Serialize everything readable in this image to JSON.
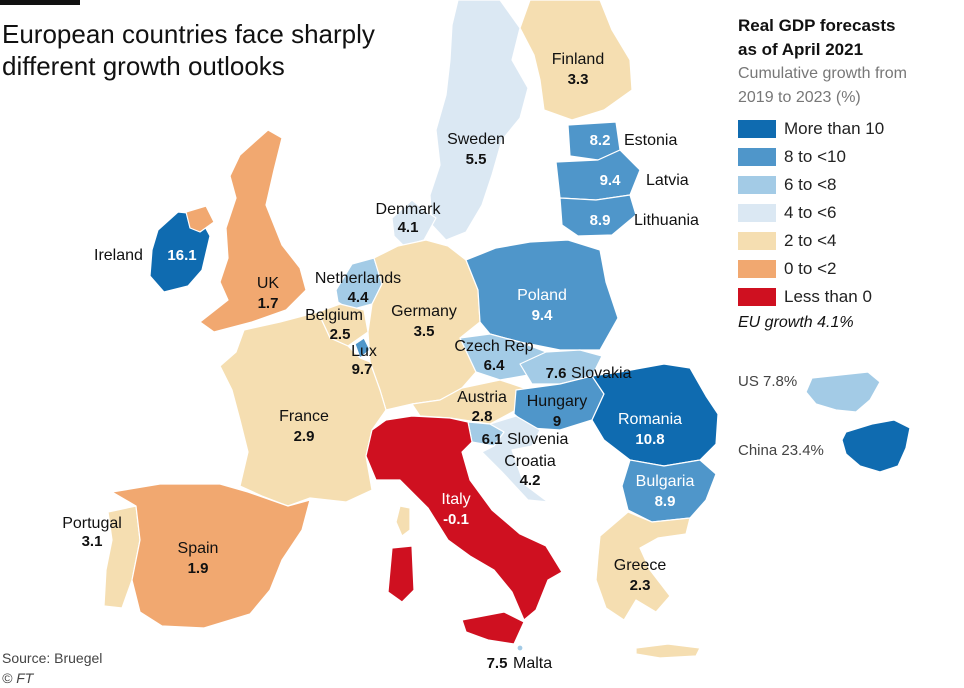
{
  "title": "European countries face sharply different growth outlooks",
  "legend": {
    "title_line1": "Real GDP forecasts",
    "title_line2": "as of April 2021",
    "sub_line1": "Cumulative growth from",
    "sub_line2": "2019 to 2023 (%)",
    "items": [
      {
        "label": "More than 10",
        "color": "#0f6bb0"
      },
      {
        "label": "8 to <10",
        "color": "#4f96ca"
      },
      {
        "label": "6 to <8",
        "color": "#a3cbe6"
      },
      {
        "label": "4 to <6",
        "color": "#dbe8f3"
      },
      {
        "label": "2 to <4",
        "color": "#f5deb1"
      },
      {
        "label": "0 to <2",
        "color": "#f1a870"
      },
      {
        "label": "Less than 0",
        "color": "#cf1020"
      }
    ],
    "eu_growth": "EU growth 4.1%"
  },
  "insets": {
    "us": {
      "label": "US 7.8%",
      "value": 7.8
    },
    "china": {
      "label": "China 23.4%",
      "value": 23.4
    }
  },
  "countries": [
    {
      "id": "finland",
      "name": "Finland",
      "value": "3.3"
    },
    {
      "id": "sweden",
      "name": "Sweden",
      "value": "5.5"
    },
    {
      "id": "estonia",
      "name": "Estonia",
      "value": "8.2"
    },
    {
      "id": "latvia",
      "name": "Latvia",
      "value": "9.4"
    },
    {
      "id": "lithuania",
      "name": "Lithuania",
      "value": "8.9"
    },
    {
      "id": "denmark",
      "name": "Denmark",
      "value": "4.1"
    },
    {
      "id": "ireland",
      "name": "Ireland",
      "value": "16.1"
    },
    {
      "id": "uk",
      "name": "UK",
      "value": "1.7"
    },
    {
      "id": "netherlands",
      "name": "Netherlands",
      "value": "4.4"
    },
    {
      "id": "belgium",
      "name": "Belgium",
      "value": "2.5"
    },
    {
      "id": "luxembourg",
      "name": "Lux",
      "value": "9.7"
    },
    {
      "id": "germany",
      "name": "Germany",
      "value": "3.5"
    },
    {
      "id": "poland",
      "name": "Poland",
      "value": "9.4"
    },
    {
      "id": "czech",
      "name": "Czech  Rep",
      "value": "6.4"
    },
    {
      "id": "slovakia",
      "name": "Slovakia",
      "value": "7.6"
    },
    {
      "id": "austria",
      "name": "Austria",
      "value": "2.8"
    },
    {
      "id": "hungary",
      "name": "Hungary",
      "value": "9"
    },
    {
      "id": "romania",
      "name": "Romania",
      "value": "10.8"
    },
    {
      "id": "slovenia",
      "name": "Slovenia",
      "value": "6.1"
    },
    {
      "id": "croatia",
      "name": "Croatia",
      "value": "4.2"
    },
    {
      "id": "bulgaria",
      "name": "Bulgaria",
      "value": "8.9"
    },
    {
      "id": "france",
      "name": "France",
      "value": "2.9"
    },
    {
      "id": "italy",
      "name": "Italy",
      "value": "-0.1"
    },
    {
      "id": "portugal",
      "name": "Portugal",
      "value": "3.1"
    },
    {
      "id": "spain",
      "name": "Spain",
      "value": "1.9"
    },
    {
      "id": "greece",
      "name": "Greece",
      "value": "2.3"
    },
    {
      "id": "malta",
      "name": "Malta",
      "value": "7.5"
    }
  ],
  "source": "Source: Bruegel",
  "credit": "© FT"
}
